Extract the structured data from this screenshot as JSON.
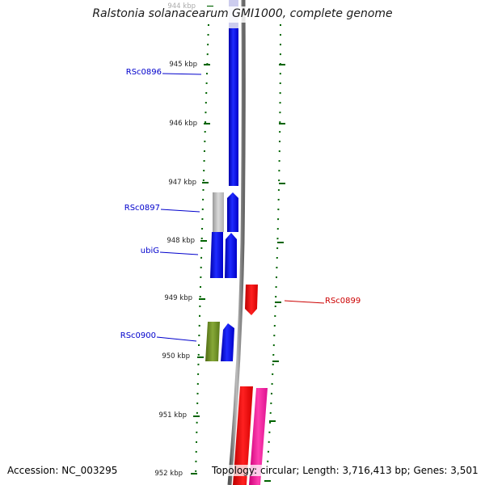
{
  "genome_title": "Ralstonia solanacearum GMI1000, complete genome",
  "footer": {
    "accession": "Accession: NC_003295",
    "summary": "Topology: circular; Length: 3,716,413 bp; Genes: 3,501"
  },
  "ticks": [
    "944 kbp",
    "945 kbp",
    "946 kbp",
    "947 kbp",
    "948 kbp",
    "949 kbp",
    "950 kbp",
    "951 kbp",
    "952 kbp"
  ],
  "gene_labels": {
    "rsc0896": "RSc0896",
    "rsc0897": "RSc0897",
    "ubig": "ubiG",
    "rsc0899": "RSc0899",
    "rsc0900": "RSc0900"
  },
  "colors": {
    "blue_gene": "#0000ee",
    "light_gene": "#bbbbbb",
    "red_gene": "#ee0000",
    "pink_gene": "#ee1199",
    "olive_gene": "#6b8e23",
    "tick_green": "#006400",
    "label_blue": "#0000cc",
    "label_red": "#cc0000"
  }
}
